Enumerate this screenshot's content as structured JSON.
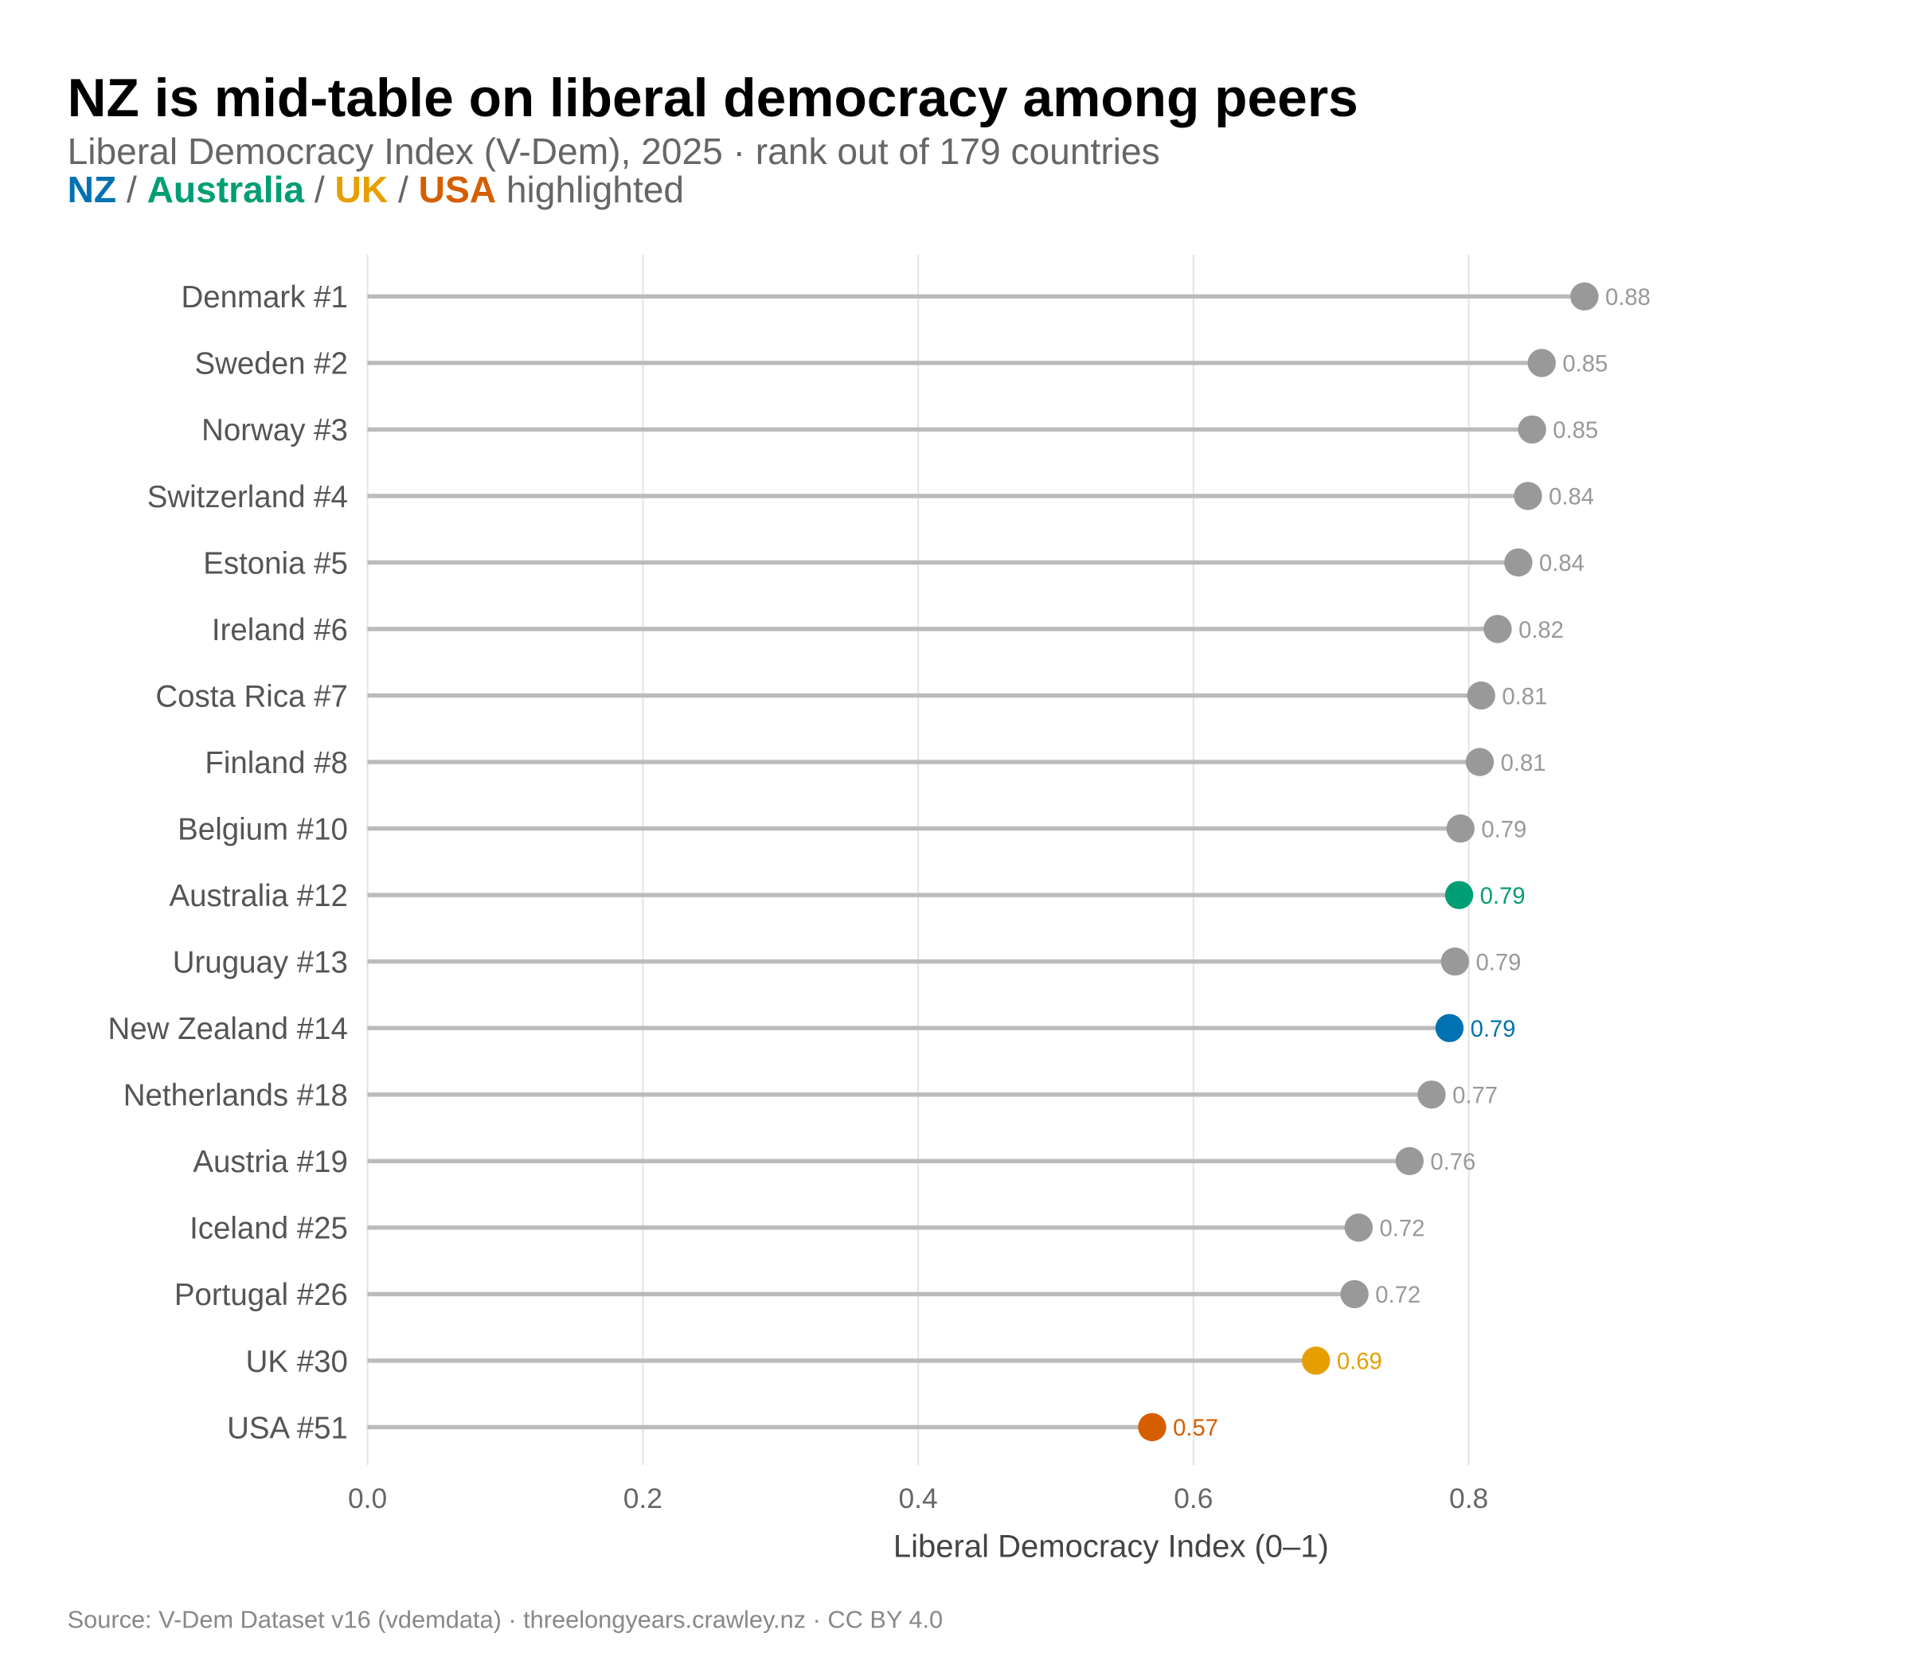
{
  "title": "NZ is mid-table on liberal democracy among peers",
  "subtitle": "Liberal Democracy Index (V-Dem), 2025 · rank out of 179 countries",
  "highlight_line": {
    "parts": [
      {
        "text": "NZ",
        "color": "#0072B2",
        "bold": true
      },
      {
        "text": " / ",
        "color": "#666666",
        "bold": false
      },
      {
        "text": "Australia",
        "color": "#009E73",
        "bold": true
      },
      {
        "text": " / ",
        "color": "#666666",
        "bold": false
      },
      {
        "text": "UK",
        "color": "#E69F00",
        "bold": true
      },
      {
        "text": " / ",
        "color": "#666666",
        "bold": false
      },
      {
        "text": "USA",
        "color": "#D55E00",
        "bold": true
      },
      {
        "text": " highlighted",
        "color": "#666666",
        "bold": false
      }
    ]
  },
  "caption": "Source: V-Dem Dataset v16 (vdemdata) · threelongyears.crawley.nz · CC BY 4.0",
  "chart_data": {
    "type": "lollipop",
    "orientation": "horizontal",
    "xlabel": "Liberal Democracy Index (0–1)",
    "xlim": [
      0,
      0.9
    ],
    "xticks": [
      "0.0",
      "0.2",
      "0.4",
      "0.6",
      "0.8"
    ],
    "xtick_values": [
      0,
      0.2,
      0.4,
      0.6,
      0.8
    ],
    "grid": "vertical major",
    "default_color": "#999999",
    "stem_color": "#BBBBBB",
    "rows": [
      {
        "label": "Denmark  #1",
        "value": 0.884,
        "text": "0.88",
        "color": "#999999"
      },
      {
        "label": "Sweden  #2",
        "value": 0.853,
        "text": "0.85",
        "color": "#999999"
      },
      {
        "label": "Norway  #3",
        "value": 0.846,
        "text": "0.85",
        "color": "#999999"
      },
      {
        "label": "Switzerland  #4",
        "value": 0.843,
        "text": "0.84",
        "color": "#999999"
      },
      {
        "label": "Estonia  #5",
        "value": 0.836,
        "text": "0.84",
        "color": "#999999"
      },
      {
        "label": "Ireland  #6",
        "value": 0.821,
        "text": "0.82",
        "color": "#999999"
      },
      {
        "label": "Costa Rica  #7",
        "value": 0.809,
        "text": "0.81",
        "color": "#999999"
      },
      {
        "label": "Finland  #8",
        "value": 0.808,
        "text": "0.81",
        "color": "#999999"
      },
      {
        "label": "Belgium  #10",
        "value": 0.794,
        "text": "0.79",
        "color": "#999999"
      },
      {
        "label": "Australia  #12",
        "value": 0.793,
        "text": "0.79",
        "color": "#009E73"
      },
      {
        "label": "Uruguay  #13",
        "value": 0.79,
        "text": "0.79",
        "color": "#999999"
      },
      {
        "label": "New Zealand  #14",
        "value": 0.786,
        "text": "0.79",
        "color": "#0072B2"
      },
      {
        "label": "Netherlands  #18",
        "value": 0.773,
        "text": "0.77",
        "color": "#999999"
      },
      {
        "label": "Austria  #19",
        "value": 0.757,
        "text": "0.76",
        "color": "#999999"
      },
      {
        "label": "Iceland  #25",
        "value": 0.72,
        "text": "0.72",
        "color": "#999999"
      },
      {
        "label": "Portugal  #26",
        "value": 0.717,
        "text": "0.72",
        "color": "#999999"
      },
      {
        "label": "UK  #30",
        "value": 0.689,
        "text": "0.69",
        "color": "#E69F00"
      },
      {
        "label": "USA  #51",
        "value": 0.57,
        "text": "0.57",
        "color": "#D55E00"
      }
    ]
  }
}
